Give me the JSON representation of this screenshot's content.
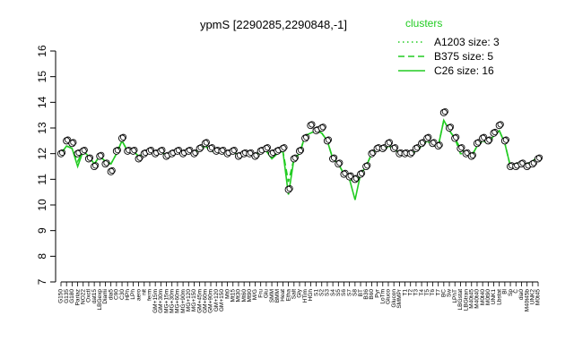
{
  "chart_data": {
    "type": "line",
    "title": "ypmS [2290285,2290848,-1]",
    "xlabel": "",
    "ylabel": "",
    "ylim": [
      7,
      16
    ],
    "yticks": [
      7,
      8,
      9,
      10,
      11,
      12,
      13,
      14,
      15,
      16
    ],
    "grid": false,
    "legend": {
      "title": "clusters",
      "position": "top-right",
      "color": "#22cc22",
      "entries": [
        {
          "label": "A1203 size: 3",
          "dash": "dotted"
        },
        {
          "label": "B375 size: 5",
          "dash": "dashed"
        },
        {
          "label": "C26 size: 16",
          "dash": "solid"
        }
      ]
    },
    "x_tick_labels": [
      "G150",
      "G135",
      "G180",
      "Pariaz",
      "NO22",
      "Oxctl",
      "dat15",
      "LBGexp",
      "Diami",
      "dia5",
      "C90",
      "C30",
      "HPh",
      "LPh",
      "aero",
      "nit",
      "ferm",
      "GM+15m",
      "GM+30m",
      "MG+15m",
      "MG+30m",
      "MG+60m",
      "MG+90m",
      "MG+120",
      "MG+150",
      "GM+45m",
      "GM+60m",
      "GM+90m",
      "GM+120",
      "GM+150",
      "Mt0",
      "Mt15",
      "Mt30",
      "Mt60",
      "Mt90",
      "M/G",
      "Fru",
      "Glu",
      "SMM",
      "BMM",
      "Heat",
      "Etha",
      "Salt",
      "Gly",
      "HTim",
      "HGh",
      "S1",
      "S2",
      "S3",
      "S4",
      "S5",
      "S6",
      "S7",
      "S8",
      "BT",
      "B36",
      "B60",
      "Pyr",
      "LoTm",
      "Gluco",
      "Glucon",
      "SMMPr",
      "T1",
      "T2",
      "T3",
      "T4",
      "T5",
      "T6",
      "T7",
      "BC",
      "Sw",
      "LPhT",
      "LBGstat",
      "LBGtran",
      "M40t45",
      "M40t40",
      "M0t40",
      "M0t90",
      "UNK1",
      "Lbstat",
      "Bl",
      "Sp",
      "C",
      "dia0",
      "M40t45b",
      "UNK2",
      "M0t45"
    ],
    "series": [
      {
        "style": "points",
        "y": [
          12.0,
          12.5,
          12.4,
          12.0,
          12.1,
          11.8,
          11.5,
          11.9,
          11.6,
          11.3,
          12.1,
          12.6,
          12.1,
          12.1,
          11.8,
          12.0,
          12.1,
          12.0,
          12.1,
          11.9,
          12.0,
          12.1,
          12.0,
          12.1,
          12.0,
          12.2,
          12.4,
          12.2,
          12.1,
          12.1,
          12.0,
          12.1,
          11.9,
          12.0,
          12.0,
          11.9,
          12.1,
          12.2,
          12.0,
          12.1,
          12.2,
          10.6,
          11.8,
          12.1,
          12.6,
          13.1,
          12.9,
          13.0,
          12.5,
          11.8,
          11.6,
          11.2,
          11.1,
          11.0,
          11.2,
          11.5,
          12.0,
          12.2,
          12.2,
          12.4,
          12.2,
          12.0,
          12.0,
          12.0,
          12.2,
          12.4,
          12.6,
          12.4,
          12.3,
          13.6,
          13.0,
          12.6,
          12.2,
          12.0,
          11.9,
          12.4,
          12.6,
          12.5,
          12.8,
          13.1,
          12.5,
          11.5,
          11.5,
          11.6,
          11.5,
          11.6,
          11.8
        ]
      },
      {
        "style": "line",
        "y": [
          12.0,
          12.3,
          12.2,
          11.5,
          12.1,
          11.9,
          11.6,
          11.9,
          11.7,
          11.6,
          12.0,
          12.5,
          12.1,
          12.1,
          11.9,
          12.0,
          12.1,
          12.0,
          12.1,
          11.9,
          12.0,
          12.1,
          12.0,
          12.1,
          12.0,
          12.2,
          12.3,
          12.1,
          12.1,
          12.0,
          12.0,
          12.1,
          11.9,
          12.0,
          12.0,
          11.9,
          12.1,
          12.1,
          11.8,
          12.0,
          12.1,
          10.4,
          11.8,
          12.0,
          12.7,
          12.8,
          12.9,
          12.8,
          12.5,
          11.8,
          11.6,
          11.2,
          11.0,
          10.2,
          11.2,
          11.5,
          12.0,
          12.2,
          12.1,
          12.3,
          12.2,
          12.0,
          12.0,
          12.0,
          12.1,
          12.3,
          12.5,
          12.3,
          12.3,
          13.3,
          12.9,
          12.6,
          12.2,
          12.0,
          11.9,
          12.3,
          12.5,
          12.4,
          12.7,
          12.9,
          12.4,
          11.5,
          11.6,
          11.6,
          11.6,
          11.7,
          11.9
        ]
      },
      {
        "style": "dashed",
        "y": [
          12.0,
          12.3,
          12.2,
          11.7,
          12.1,
          11.9,
          11.6,
          11.9,
          11.7,
          11.6,
          12.0,
          12.5,
          12.1,
          12.1,
          11.9,
          12.0,
          12.1,
          12.0,
          12.1,
          11.9,
          12.0,
          12.1,
          12.0,
          12.1,
          12.0,
          12.2,
          12.3,
          12.1,
          12.1,
          12.0,
          12.0,
          12.1,
          11.9,
          12.0,
          12.0,
          11.9,
          12.1,
          12.1,
          11.9,
          12.0,
          12.1,
          10.9,
          11.8,
          12.0,
          12.7,
          12.8,
          12.9,
          12.8,
          12.5,
          11.8,
          11.6,
          11.2,
          11.0,
          10.9,
          11.2,
          11.5,
          12.0,
          12.2,
          12.1,
          12.3,
          12.2,
          12.0,
          12.0,
          12.0,
          12.1,
          12.3,
          12.5,
          12.3,
          12.3,
          13.3,
          12.9,
          12.6,
          12.0,
          12.0,
          11.9,
          12.3,
          12.5,
          12.4,
          12.7,
          12.9,
          12.4,
          11.5,
          11.6,
          11.6,
          11.6,
          11.7,
          11.9
        ]
      }
    ]
  }
}
